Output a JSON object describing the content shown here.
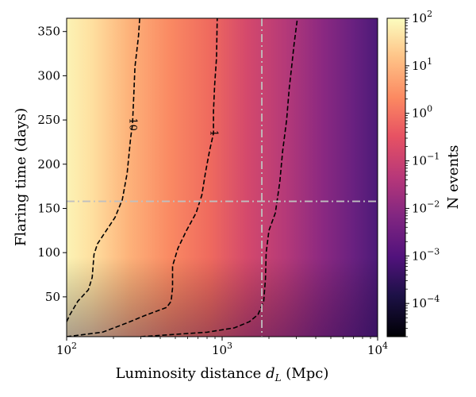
{
  "chart_data": {
    "type": "heatmap",
    "title": "",
    "xlabel": "Luminosity distance",
    "xlabel_symbol": "d",
    "xlabel_subscript": "L",
    "xlabel_unit": "(Mpc)",
    "ylabel": "Flaring time (days)",
    "colorbar_label": "N events",
    "x_scale": "log",
    "xlim": [
      100,
      10000
    ],
    "ylim": [
      5,
      365
    ],
    "x_ticks": [
      {
        "value": 100,
        "base": "10",
        "exp": "2"
      },
      {
        "value": 1000,
        "base": "10",
        "exp": "3"
      },
      {
        "value": 10000,
        "base": "10",
        "exp": "4"
      }
    ],
    "y_ticks": [
      {
        "value": 50,
        "label": "50"
      },
      {
        "value": 100,
        "label": "100"
      },
      {
        "value": 150,
        "label": "150"
      },
      {
        "value": 200,
        "label": "200"
      },
      {
        "value": 250,
        "label": "250"
      },
      {
        "value": 300,
        "label": "300"
      },
      {
        "value": 350,
        "label": "350"
      }
    ],
    "colorbar": {
      "scale": "log",
      "range": [
        2e-05,
        100
      ],
      "colormap": "magma",
      "ticks": [
        {
          "value": 100,
          "base": "10",
          "exp": "2"
        },
        {
          "value": 10,
          "base": "10",
          "exp": "1"
        },
        {
          "value": 1,
          "base": "10",
          "exp": "0"
        },
        {
          "value": 0.1,
          "base": "10",
          "exp": "−1"
        },
        {
          "value": 0.01,
          "base": "10",
          "exp": "−2"
        },
        {
          "value": 0.001,
          "base": "10",
          "exp": "−3"
        },
        {
          "value": 0.0001,
          "base": "10",
          "exp": "−4"
        }
      ]
    },
    "contours": [
      {
        "level": 10,
        "label": "10",
        "label_at": {
          "x": 265,
          "y": 245
        },
        "points": [
          [
            100,
            22
          ],
          [
            105,
            30
          ],
          [
            118,
            45
          ],
          [
            138,
            58
          ],
          [
            146,
            72
          ],
          [
            150,
            98
          ],
          [
            158,
            110
          ],
          [
            180,
            125
          ],
          [
            205,
            140
          ],
          [
            228,
            160
          ],
          [
            245,
            190
          ],
          [
            258,
            230
          ],
          [
            265,
            245
          ],
          [
            270,
            275
          ],
          [
            275,
            310
          ],
          [
            290,
            345
          ],
          [
            295,
            365
          ]
        ]
      },
      {
        "level": 1,
        "label": "1",
        "label_at": {
          "x": 880,
          "y": 235
        },
        "points": [
          [
            100,
            5
          ],
          [
            170,
            10
          ],
          [
            240,
            20
          ],
          [
            330,
            30
          ],
          [
            440,
            38
          ],
          [
            470,
            45
          ],
          [
            480,
            60
          ],
          [
            480,
            85
          ],
          [
            520,
            105
          ],
          [
            590,
            125
          ],
          [
            680,
            145
          ],
          [
            740,
            165
          ],
          [
            780,
            190
          ],
          [
            830,
            215
          ],
          [
            880,
            235
          ],
          [
            880,
            260
          ],
          [
            895,
            290
          ],
          [
            920,
            320
          ],
          [
            930,
            365
          ]
        ]
      },
      {
        "level": 0.1,
        "label": "",
        "points": [
          [
            300,
            5
          ],
          [
            800,
            10
          ],
          [
            1200,
            15
          ],
          [
            1500,
            22
          ],
          [
            1700,
            30
          ],
          [
            1850,
            45
          ],
          [
            1900,
            70
          ],
          [
            1920,
            100
          ],
          [
            2000,
            125
          ],
          [
            2200,
            145
          ],
          [
            2350,
            180
          ],
          [
            2450,
            215
          ],
          [
            2600,
            250
          ],
          [
            2700,
            285
          ],
          [
            2800,
            310
          ],
          [
            2900,
            335
          ],
          [
            3050,
            365
          ]
        ]
      }
    ],
    "reference_lines": [
      {
        "orientation": "vertical",
        "x": 1800,
        "style": "dash-dot",
        "color": "#c0c0c0"
      },
      {
        "orientation": "horizontal",
        "y": 158,
        "style": "dash-dot",
        "color": "#c0c0c0"
      }
    ]
  }
}
